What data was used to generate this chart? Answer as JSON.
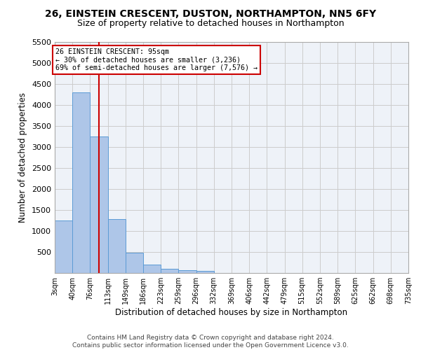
{
  "title1": "26, EINSTEIN CRESCENT, DUSTON, NORTHAMPTON, NN5 6FY",
  "title2": "Size of property relative to detached houses in Northampton",
  "xlabel": "Distribution of detached houses by size in Northampton",
  "ylabel": "Number of detached properties",
  "bins": [
    3,
    40,
    76,
    113,
    149,
    186,
    223,
    259,
    296,
    332,
    369,
    406,
    442,
    479,
    515,
    552,
    589,
    625,
    662,
    698,
    735
  ],
  "bin_labels": [
    "3sqm",
    "40sqm",
    "76sqm",
    "113sqm",
    "149sqm",
    "186sqm",
    "223sqm",
    "259sqm",
    "296sqm",
    "332sqm",
    "369sqm",
    "406sqm",
    "442sqm",
    "479sqm",
    "515sqm",
    "552sqm",
    "589sqm",
    "625sqm",
    "662sqm",
    "698sqm",
    "735sqm"
  ],
  "bar_heights": [
    1250,
    4300,
    3250,
    1280,
    480,
    200,
    100,
    60,
    50,
    0,
    0,
    0,
    0,
    0,
    0,
    0,
    0,
    0,
    0,
    0
  ],
  "bar_color": "#aec6e8",
  "bar_edge_color": "#5b9bd5",
  "grid_color": "#cccccc",
  "bg_color": "#eef2f8",
  "property_size": 95,
  "vline_color": "#cc0000",
  "annotation_line1": "26 EINSTEIN CRESCENT: 95sqm",
  "annotation_line2": "← 30% of detached houses are smaller (3,236)",
  "annotation_line3": "69% of semi-detached houses are larger (7,576) →",
  "annotation_box_color": "#cc0000",
  "ylim": [
    0,
    5500
  ],
  "yticks": [
    0,
    500,
    1000,
    1500,
    2000,
    2500,
    3000,
    3500,
    4000,
    4500,
    5000,
    5500
  ],
  "footer": "Contains HM Land Registry data © Crown copyright and database right 2024.\nContains public sector information licensed under the Open Government Licence v3.0.",
  "title_fontsize": 10,
  "subtitle_fontsize": 9,
  "footer_fontsize": 6.5
}
